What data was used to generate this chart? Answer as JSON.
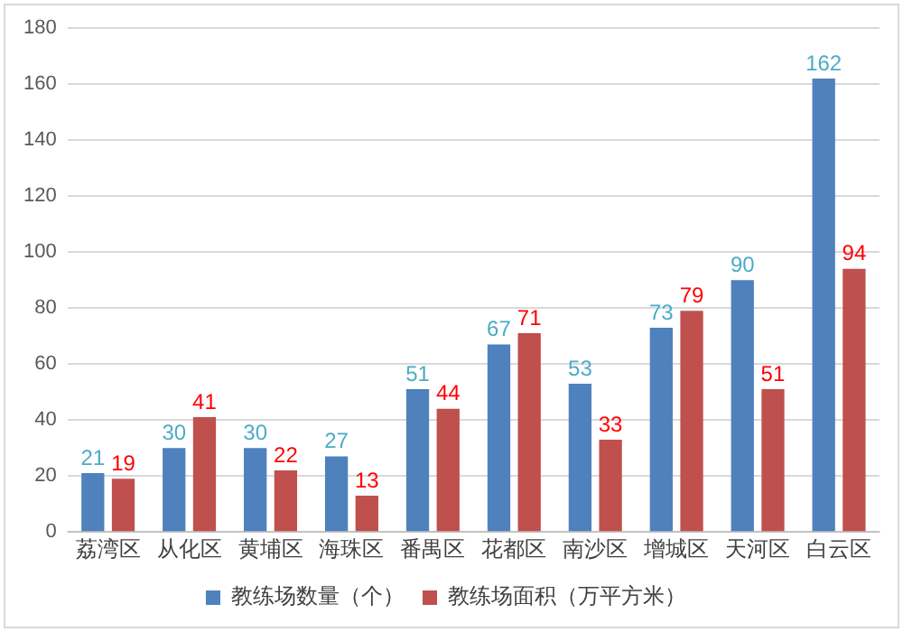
{
  "chart_data": {
    "type": "bar",
    "categories": [
      "荔湾区",
      "从化区",
      "黄埔区",
      "海珠区",
      "番禺区",
      "花都区",
      "南沙区",
      "增城区",
      "天河区",
      "白云区"
    ],
    "series": [
      {
        "name": "教练场数量（个）",
        "color": "#4f81bd",
        "values": [
          21,
          30,
          30,
          27,
          51,
          67,
          53,
          73,
          90,
          162
        ]
      },
      {
        "name": "教练场面积（万平方米）",
        "color": "#c0504d",
        "values": [
          19,
          41,
          22,
          13,
          44,
          71,
          33,
          79,
          51,
          94
        ]
      }
    ],
    "ylim": [
      0,
      180
    ],
    "yticks": [
      0,
      20,
      40,
      60,
      80,
      100,
      120,
      140,
      160,
      180
    ],
    "grid": "y",
    "legend": "bottom",
    "data_labels": true
  }
}
